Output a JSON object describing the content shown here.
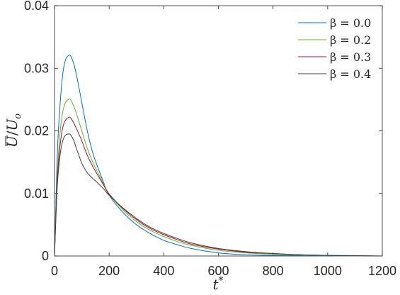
{
  "chart_data": {
    "type": "line",
    "xlabel": "t*",
    "ylabel": "Ū/U_o",
    "xlim": [
      0,
      1200
    ],
    "ylim": [
      0,
      0.04
    ],
    "xticks": [
      0,
      200,
      400,
      600,
      800,
      1000,
      1200
    ],
    "yticks": [
      0,
      0.01,
      0.02,
      0.03,
      0.04
    ],
    "xtick_labels": [
      "0",
      "200",
      "400",
      "600",
      "800",
      "1000",
      "1200"
    ],
    "ytick_labels": [
      "0",
      "0.01",
      "0.02",
      "0.03",
      "0.04"
    ],
    "grid": false,
    "legend_position": "top-right",
    "series": [
      {
        "name": "β = 0.0",
        "color": "#0072BD",
        "x": [
          0,
          10,
          20,
          30,
          40,
          50,
          55,
          60,
          70,
          80,
          90,
          100,
          120,
          140,
          160,
          180,
          200,
          250,
          300,
          350,
          400,
          450,
          500,
          600,
          700,
          800,
          900,
          1000,
          1100,
          1200
        ],
        "y": [
          0,
          0.016,
          0.024,
          0.029,
          0.0313,
          0.032,
          0.0321,
          0.0319,
          0.0308,
          0.029,
          0.0268,
          0.0245,
          0.02,
          0.0165,
          0.014,
          0.0117,
          0.0097,
          0.007,
          0.005,
          0.0036,
          0.0025,
          0.0018,
          0.0012,
          0.0005,
          0.0002,
          0.0001,
          5e-05,
          2e-05,
          1e-05,
          0.0
        ]
      },
      {
        "name": "β = 0.2",
        "color": "#77AC30",
        "x": [
          0,
          10,
          20,
          30,
          40,
          50,
          55,
          60,
          70,
          80,
          90,
          100,
          120,
          140,
          160,
          180,
          200,
          250,
          300,
          350,
          400,
          450,
          500,
          600,
          700,
          800,
          900,
          1000,
          1100,
          1200
        ],
        "y": [
          0,
          0.013,
          0.0195,
          0.023,
          0.0245,
          0.025,
          0.0251,
          0.0249,
          0.024,
          0.0228,
          0.0214,
          0.02,
          0.0172,
          0.015,
          0.0132,
          0.0115,
          0.0099,
          0.0074,
          0.0055,
          0.0041,
          0.0031,
          0.0023,
          0.0017,
          0.0009,
          0.0005,
          0.0003,
          0.00015,
          8e-05,
          4e-05,
          0.0
        ]
      },
      {
        "name": "β = 0.3",
        "color": "#A2142F",
        "x": [
          0,
          10,
          20,
          30,
          40,
          50,
          55,
          60,
          70,
          80,
          90,
          100,
          120,
          140,
          160,
          180,
          200,
          250,
          300,
          350,
          400,
          450,
          500,
          600,
          700,
          800,
          900,
          1000,
          1100,
          1200
        ],
        "y": [
          0,
          0.012,
          0.0175,
          0.0205,
          0.0217,
          0.0221,
          0.0222,
          0.022,
          0.0213,
          0.0204,
          0.0194,
          0.0184,
          0.0161,
          0.0143,
          0.0128,
          0.0113,
          0.0099,
          0.0076,
          0.0058,
          0.0044,
          0.0034,
          0.0026,
          0.0019,
          0.0011,
          0.0006,
          0.0004,
          0.0002,
          0.0001,
          5e-05,
          0.0
        ]
      },
      {
        "name": "β = 0.4",
        "color": "#404040",
        "x": [
          0,
          10,
          20,
          30,
          40,
          50,
          55,
          60,
          70,
          80,
          90,
          100,
          120,
          140,
          160,
          180,
          200,
          250,
          300,
          350,
          400,
          450,
          500,
          600,
          700,
          800,
          900,
          1000,
          1100,
          1200
        ],
        "y": [
          0,
          0.011,
          0.016,
          0.0184,
          0.0193,
          0.0195,
          0.0195,
          0.0193,
          0.0185,
          0.0172,
          0.016,
          0.0148,
          0.0133,
          0.0124,
          0.0116,
          0.0107,
          0.0097,
          0.0077,
          0.006,
          0.0046,
          0.0036,
          0.0028,
          0.0021,
          0.0012,
          0.0007,
          0.0004,
          0.0002,
          0.0001,
          5e-05,
          0.0
        ]
      }
    ]
  }
}
